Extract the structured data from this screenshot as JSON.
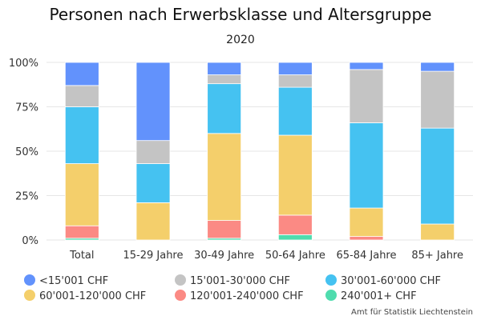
{
  "chart_data": {
    "type": "bar",
    "stacked": true,
    "percent": true,
    "title": "Personen nach Erwerbsklasse und Altersgruppe",
    "subtitle": "2020",
    "categories": [
      "Total",
      "15-29 Jahre",
      "30-49 Jahre",
      "50-64 Jahre",
      "65-84 Jahre",
      "85+ Jahre"
    ],
    "y_ticks": [
      "0%",
      "25%",
      "50%",
      "75%",
      "100%"
    ],
    "ylim": [
      0,
      100
    ],
    "grid": true,
    "legend_position": "bottom",
    "series": [
      {
        "name": "240'001+ CHF",
        "color": "#4fdcae",
        "values": [
          1,
          0,
          1,
          3,
          0,
          0
        ]
      },
      {
        "name": "120'001-240'000 CHF",
        "color": "#fb8a84",
        "values": [
          7,
          0,
          10,
          11,
          2,
          0
        ]
      },
      {
        "name": "60'001-120'000 CHF",
        "color": "#f4cf6b",
        "values": [
          35,
          21,
          49,
          45,
          16,
          9
        ]
      },
      {
        "name": "30'001-60'000 CHF",
        "color": "#45c2f1",
        "values": [
          32,
          22,
          28,
          27,
          48,
          54
        ]
      },
      {
        "name": "15'001-30'000 CHF",
        "color": "#c4c4c4",
        "values": [
          12,
          13,
          5,
          7,
          30,
          32
        ]
      },
      {
        "name": "<15'001 CHF",
        "color": "#6292fc",
        "values": [
          13,
          44,
          7,
          7,
          4,
          5
        ]
      }
    ],
    "legend_order": [
      "<15'001 CHF",
      "15'001-30'000 CHF",
      "30'001-60'000 CHF",
      "60'001-120'000 CHF",
      "120'001-240'000 CHF",
      "240'001+ CHF"
    ],
    "source": "Amt für Statistik Liechtenstein"
  }
}
